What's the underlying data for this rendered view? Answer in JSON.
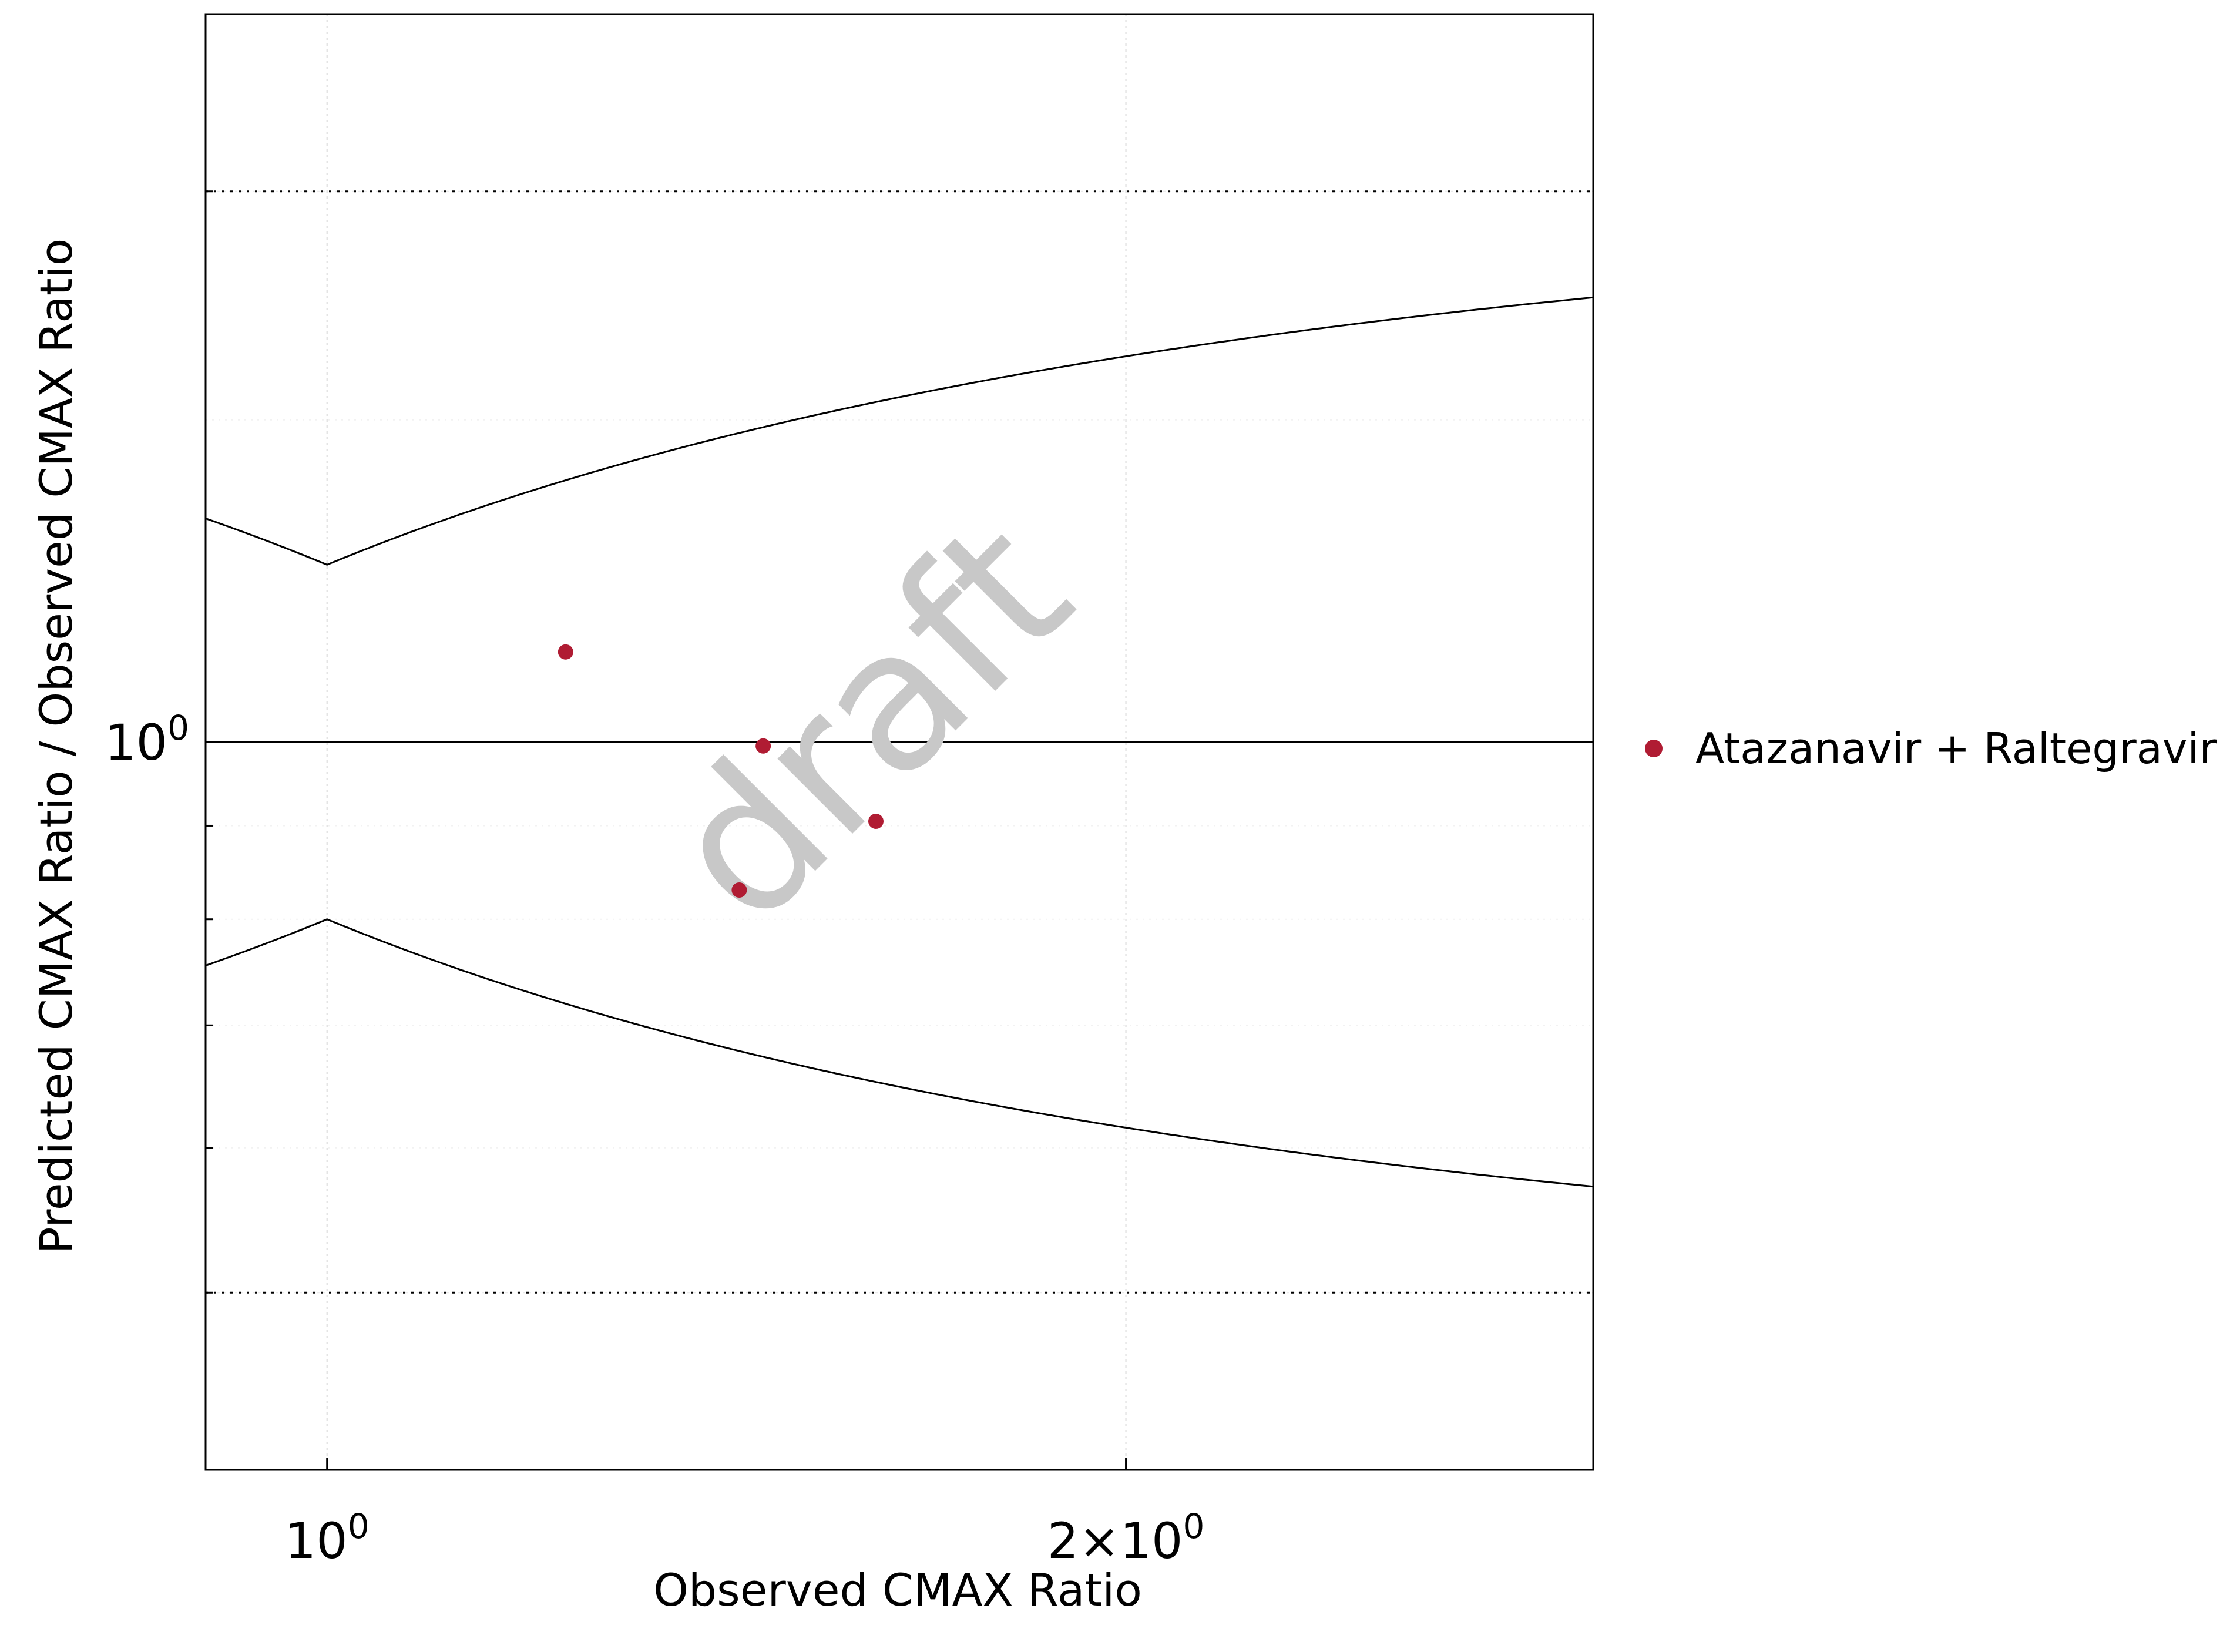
{
  "chart_data": {
    "type": "scatter",
    "xlabel": "Observed CMAX Ratio",
    "ylabel": "Predicted CMAX Ratio / Observed CMAX Ratio",
    "x_scale": "log",
    "y_scale": "log",
    "xlim": [
      0.9,
      3.0
    ],
    "ylim": [
      0.4,
      2.5
    ],
    "x_ticks": [
      {
        "value": 1,
        "label": "10",
        "sup": "0"
      },
      {
        "value": 2,
        "label": "2×10",
        "sup": "0"
      }
    ],
    "y_ticks": [
      {
        "value": 1,
        "label": "10",
        "sup": "0"
      }
    ],
    "grid": true,
    "reference_lines": {
      "identity": 1,
      "twofold": [
        0.5,
        2
      ],
      "guest_limits_delta": 1.25
    },
    "series": [
      {
        "name": "Atazanavir + Raltegravir",
        "color": "#b01c33",
        "points": [
          {
            "x": 1.23,
            "y": 1.12
          },
          {
            "x": 1.46,
            "y": 0.995
          },
          {
            "x": 1.43,
            "y": 0.83
          },
          {
            "x": 1.61,
            "y": 0.905
          }
        ]
      }
    ],
    "watermark": "draft",
    "legend_position": "right"
  }
}
